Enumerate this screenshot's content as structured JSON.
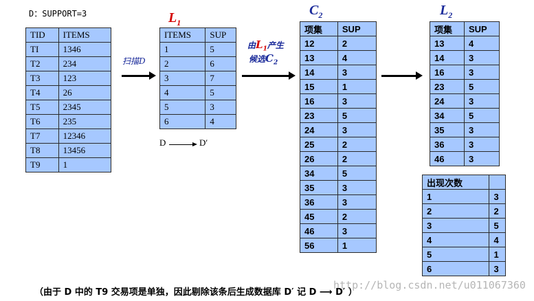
{
  "support_label": "D：SUPPORT=3",
  "tables": {
    "D": {
      "headers": [
        "TID",
        "ITEMS"
      ],
      "rows": [
        [
          "TI",
          "1346"
        ],
        [
          "T2",
          "234"
        ],
        [
          "T3",
          "123"
        ],
        [
          "T4",
          "26"
        ],
        [
          "T5",
          "2345"
        ],
        [
          "T6",
          "235"
        ],
        [
          "T7",
          "12346"
        ],
        [
          "T8",
          "13456"
        ],
        [
          "T9",
          "1"
        ]
      ]
    },
    "L1": {
      "title": "L",
      "sub": "1",
      "headers": [
        "ITEMS",
        "SUP"
      ],
      "rows": [
        [
          "1",
          "5"
        ],
        [
          "2",
          "6"
        ],
        [
          "3",
          "7"
        ],
        [
          "4",
          "5"
        ],
        [
          "5",
          "3"
        ],
        [
          "6",
          "4"
        ]
      ]
    },
    "C2": {
      "title": "C",
      "sub": "2",
      "headers": [
        "项集",
        "SUP"
      ],
      "rows": [
        [
          "12",
          "2"
        ],
        [
          "13",
          "4"
        ],
        [
          "14",
          "3"
        ],
        [
          "15",
          "1"
        ],
        [
          "16",
          "3"
        ],
        [
          "23",
          "5"
        ],
        [
          "24",
          "3"
        ],
        [
          "25",
          "2"
        ],
        [
          "26",
          "2"
        ],
        [
          "34",
          "5"
        ],
        [
          "35",
          "3"
        ],
        [
          "36",
          "3"
        ],
        [
          "45",
          "2"
        ],
        [
          "46",
          "3"
        ],
        [
          "56",
          "1"
        ]
      ]
    },
    "L2": {
      "title": "L",
      "sub": "2",
      "headers": [
        "项集",
        "SUP"
      ],
      "rows": [
        [
          "13",
          "4"
        ],
        [
          "14",
          "3"
        ],
        [
          "16",
          "3"
        ],
        [
          "23",
          "5"
        ],
        [
          "24",
          "3"
        ],
        [
          "34",
          "5"
        ],
        [
          "35",
          "3"
        ],
        [
          "36",
          "3"
        ],
        [
          "46",
          "3"
        ]
      ]
    },
    "counts": {
      "headers": [
        "出现次数",
        ""
      ],
      "rows": [
        [
          "1",
          "3"
        ],
        [
          "2",
          "2"
        ],
        [
          "3",
          "5"
        ],
        [
          "4",
          "4"
        ],
        [
          "5",
          "1"
        ],
        [
          "6",
          "3"
        ]
      ]
    }
  },
  "annotations": {
    "scan": "扫描D",
    "gen_a": "由",
    "gen_L": "L",
    "gen_sub1": "1",
    "gen_b": "产生",
    "gen_c": "候选",
    "gen_C": "C",
    "gen_sub2": "2",
    "d_from": "D",
    "d_to": "D′"
  },
  "footer": "（由于 D 中的 T9 交易项是单独，因此剔除该条后生成数据库   D′ 记 D ⟶ D′ ）",
  "watermark": "http://blog.csdn.net/u011067360"
}
